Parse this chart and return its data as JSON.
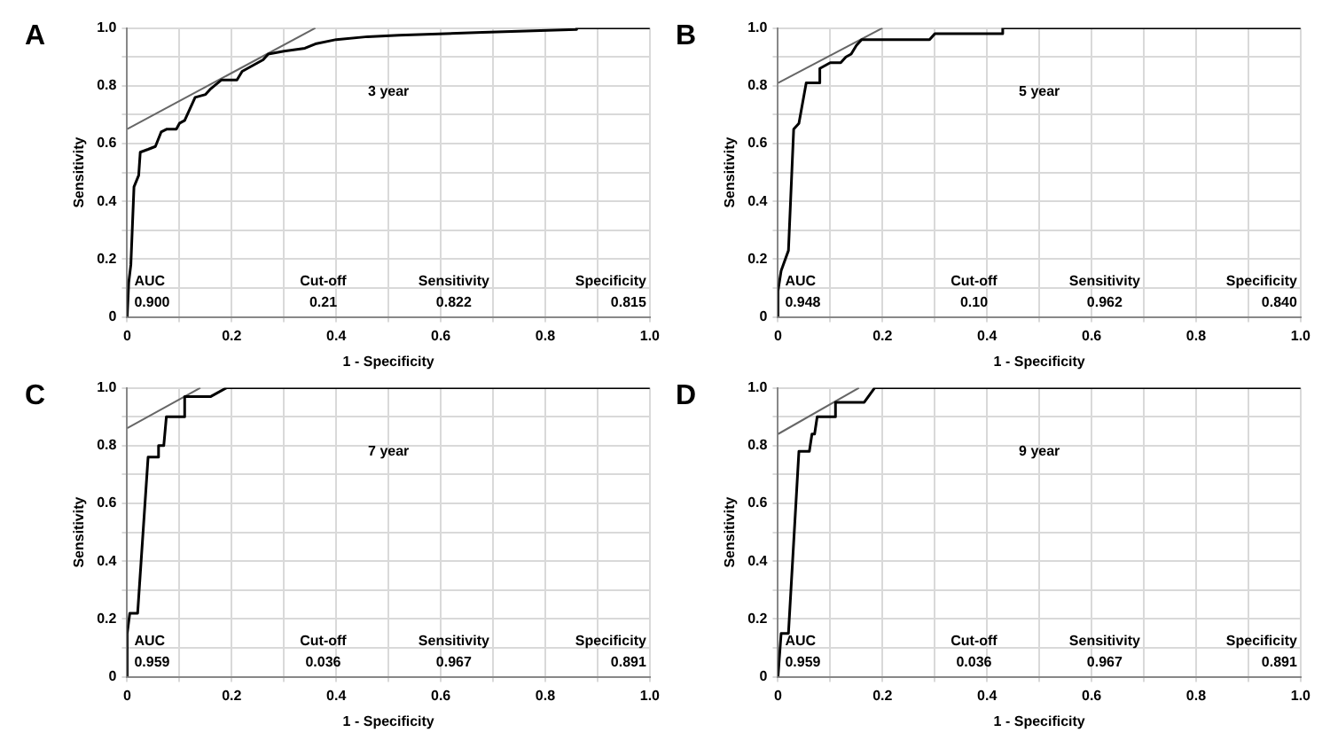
{
  "chart_data": [
    {
      "type": "line",
      "title": "A",
      "xlabel": "1 - Specificity",
      "ylabel": "Sensitivity",
      "annotations": [
        "3 year",
        "AUC",
        "Cut-off",
        "Sensitivity",
        "Specificity",
        "0.900",
        "0.21",
        "0.822",
        "0.815"
      ],
      "xlim": [
        0,
        1
      ],
      "ylim": [
        0,
        1
      ],
      "xticks": [
        0,
        {
          "value": 0.1,
          "label": null
        },
        0.2,
        {
          "value": 0.3,
          "label": null
        },
        0.4,
        {
          "value": 0.5,
          "label": null
        },
        0.6,
        {
          "value": 0.7,
          "label": null
        },
        0.8,
        {
          "value": 0.9,
          "label": null
        },
        {
          "value": 1,
          "label": "1.0"
        }
      ],
      "yticks": [
        0,
        {
          "value": 0.1,
          "label": null
        },
        0.2,
        {
          "value": 0.3,
          "label": null
        },
        0.4,
        {
          "value": 0.5,
          "label": null
        },
        0.6,
        {
          "value": 0.7,
          "label": null
        },
        0.8,
        {
          "value": 0.9,
          "label": null
        },
        {
          "value": 1,
          "label": "1.0"
        }
      ],
      "grid": true,
      "marker": "none",
      "line_style": "solid",
      "series": [
        {
          "color": "#000000",
          "x": [
            0,
            0.003,
            0.007,
            0.013,
            0.022,
            0.025,
            0.04,
            0.054,
            0.065,
            0.076,
            0.094,
            0.1,
            0.11,
            0.12,
            0.13,
            0.15,
            0.16,
            0.18,
            0.21,
            0.22,
            0.24,
            0.26,
            0.27,
            0.3,
            0.34,
            0.36,
            0.4,
            0.46,
            0.52,
            0.68,
            0.86,
            0.86,
            1
          ],
          "values": [
            0,
            0.12,
            0.18,
            0.45,
            0.49,
            0.57,
            0.58,
            0.59,
            0.64,
            0.65,
            0.65,
            0.67,
            0.68,
            0.72,
            0.76,
            0.77,
            0.79,
            0.82,
            0.82,
            0.85,
            0.87,
            0.89,
            0.91,
            0.92,
            0.93,
            0.945,
            0.96,
            0.97,
            0.975,
            0.985,
            0.995,
            1,
            1
          ]
        },
        {
          "type": "line",
          "color": "#666666",
          "x": [
            0,
            0.36
          ],
          "values": [
            0.65,
            1
          ]
        }
      ]
    },
    {
      "type": "line",
      "title": "B",
      "xlabel": "1 - Specificity",
      "ylabel": "Sensitivity",
      "annotations": [
        "5 year",
        "AUC",
        "Cut-off",
        "Sensitivity",
        "Specificity",
        "0.948",
        "0.10",
        "0.962",
        "0.840"
      ],
      "xlim": [
        0,
        1
      ],
      "ylim": [
        0,
        1
      ],
      "xticks": [
        0,
        {
          "value": 0.1,
          "label": null
        },
        0.2,
        {
          "value": 0.3,
          "label": null
        },
        0.4,
        {
          "value": 0.5,
          "label": null
        },
        0.6,
        {
          "value": 0.7,
          "label": null
        },
        0.8,
        {
          "value": 0.9,
          "label": null
        },
        {
          "value": 1,
          "label": "1.0"
        }
      ],
      "yticks": [
        0,
        {
          "value": 0.1,
          "label": null
        },
        0.2,
        {
          "value": 0.3,
          "label": null
        },
        0.4,
        {
          "value": 0.5,
          "label": null
        },
        0.6,
        {
          "value": 0.7,
          "label": null
        },
        0.8,
        {
          "value": 0.9,
          "label": null
        },
        {
          "value": 1,
          "label": "1.0"
        }
      ],
      "grid": true,
      "marker": "none",
      "line_style": "solid",
      "series": [
        {
          "color": "#000000",
          "x": [
            0,
            0,
            0.006,
            0.01,
            0.02,
            0.03,
            0.04,
            0.054,
            0.08,
            0.08,
            0.1,
            0.12,
            0.13,
            0.14,
            0.15,
            0.16,
            0.29,
            0.3,
            0.43,
            0.43,
            1
          ],
          "values": [
            0,
            0.09,
            0.16,
            0.18,
            0.23,
            0.65,
            0.67,
            0.81,
            0.81,
            0.86,
            0.88,
            0.88,
            0.9,
            0.91,
            0.94,
            0.96,
            0.96,
            0.98,
            0.98,
            1,
            1
          ]
        },
        {
          "type": "line",
          "color": "#666666",
          "x": [
            0,
            0.2
          ],
          "values": [
            0.81,
            1
          ]
        }
      ]
    },
    {
      "type": "line",
      "title": "C",
      "xlabel": "1 - Specificity",
      "ylabel": "Sensitivity",
      "annotations": [
        "7 year",
        "AUC",
        "Cut-off",
        "Sensitivity",
        "Specificity",
        "0.959",
        "0.036",
        "0.967",
        "0.891"
      ],
      "xlim": [
        0,
        1
      ],
      "ylim": [
        0,
        1
      ],
      "xticks": [
        0,
        {
          "value": 0.1,
          "label": null
        },
        0.2,
        {
          "value": 0.3,
          "label": null
        },
        0.4,
        {
          "value": 0.5,
          "label": null
        },
        0.6,
        {
          "value": 0.7,
          "label": null
        },
        0.8,
        {
          "value": 0.9,
          "label": null
        },
        {
          "value": 1,
          "label": "1.0"
        }
      ],
      "yticks": [
        0,
        {
          "value": 0.1,
          "label": null
        },
        0.2,
        {
          "value": 0.3,
          "label": null
        },
        0.4,
        {
          "value": 0.5,
          "label": null
        },
        0.6,
        {
          "value": 0.7,
          "label": null
        },
        0.8,
        {
          "value": 0.9,
          "label": null
        },
        {
          "value": 1,
          "label": "1.0"
        }
      ],
      "grid": true,
      "marker": "none",
      "line_style": "solid",
      "series": [
        {
          "color": "#000000",
          "x": [
            0,
            0,
            0.005,
            0.02,
            0.04,
            0.06,
            0.06,
            0.07,
            0.075,
            0.11,
            0.11,
            0.16,
            0.19,
            1
          ],
          "values": [
            0,
            0.15,
            0.22,
            0.22,
            0.76,
            0.76,
            0.8,
            0.8,
            0.9,
            0.9,
            0.97,
            0.97,
            1,
            1
          ]
        },
        {
          "type": "line",
          "color": "#666666",
          "x": [
            0,
            0.14
          ],
          "values": [
            0.86,
            1
          ]
        }
      ]
    },
    {
      "type": "line",
      "title": "D",
      "xlabel": "1 - Specificity",
      "ylabel": "Sensitivity",
      "annotations": [
        "9 year",
        "AUC",
        "Cut-off",
        "Sensitivity",
        "Specificity",
        "0.959",
        "0.036",
        "0.967",
        "0.891"
      ],
      "xlim": [
        0,
        1
      ],
      "ylim": [
        0,
        1
      ],
      "xticks": [
        0,
        {
          "value": 0.1,
          "label": null
        },
        0.2,
        {
          "value": 0.3,
          "label": null
        },
        0.4,
        {
          "value": 0.5,
          "label": null
        },
        0.6,
        {
          "value": 0.7,
          "label": null
        },
        0.8,
        {
          "value": 0.9,
          "label": null
        },
        {
          "value": 1,
          "label": "1.0"
        }
      ],
      "yticks": [
        0,
        {
          "value": 0.1,
          "label": null
        },
        0.2,
        {
          "value": 0.3,
          "label": null
        },
        0.4,
        {
          "value": 0.5,
          "label": null
        },
        0.6,
        {
          "value": 0.7,
          "label": null
        },
        0.8,
        {
          "value": 0.9,
          "label": null
        },
        {
          "value": 1,
          "label": "1.0"
        }
      ],
      "grid": true,
      "marker": "none",
      "line_style": "solid",
      "series": [
        {
          "color": "#000000",
          "x": [
            0,
            0.006,
            0.02,
            0.04,
            0.06,
            0.065,
            0.07,
            0.075,
            0.11,
            0.11,
            0.165,
            0.185,
            1
          ],
          "values": [
            0,
            0.15,
            0.15,
            0.78,
            0.78,
            0.84,
            0.84,
            0.9,
            0.9,
            0.95,
            0.95,
            1,
            1
          ]
        },
        {
          "type": "line",
          "color": "#666666",
          "x": [
            0,
            0.155
          ],
          "values": [
            0.84,
            1
          ]
        }
      ]
    }
  ]
}
